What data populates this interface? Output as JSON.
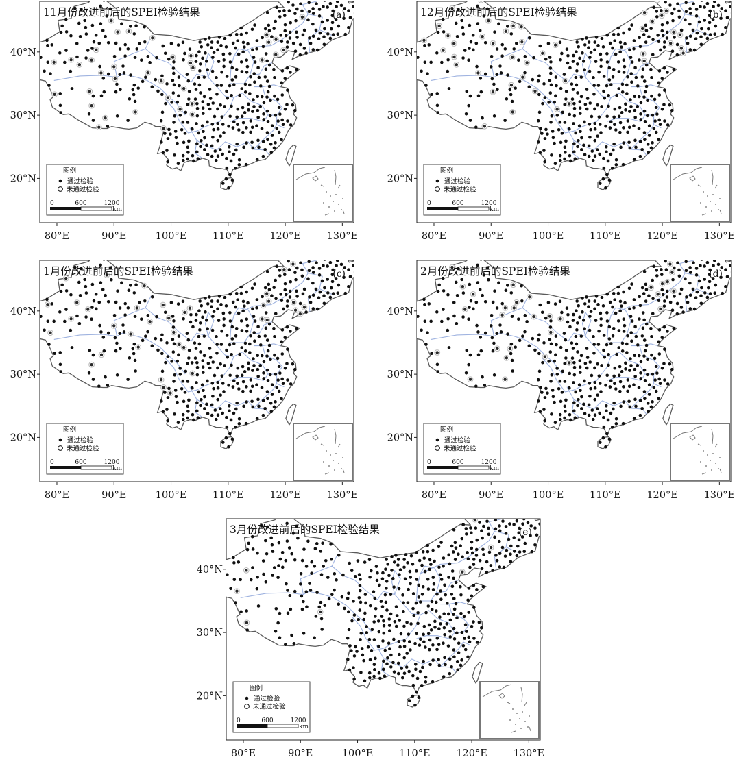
{
  "panels": [
    {
      "id": "a",
      "title": "11月份改进前后的SPEI检验结果",
      "letter": "(a)",
      "failed_stations": 38
    },
    {
      "id": "b",
      "title": "12月份改进前后的SPEI检验结果",
      "letter": "(b)",
      "failed_stations": 44
    },
    {
      "id": "c",
      "title": "1月份改进前后的SPEI检验结果",
      "letter": "(c)",
      "failed_stations": 40
    },
    {
      "id": "d",
      "title": "2月份改进前后的SPEI检验结果",
      "letter": "(d)",
      "failed_stations": 32
    },
    {
      "id": "e",
      "title": "3月份改进前后的SPEI检验结果",
      "letter": "(e)",
      "failed_stations": 10
    }
  ],
  "axes": {
    "x_ticks": [
      "80°E",
      "90°E",
      "100°E",
      "110°E",
      "120°E",
      "130°E"
    ],
    "y_ticks": [
      "40°N",
      "30°N",
      "20°N"
    ],
    "lon_range": [
      77,
      132
    ],
    "lat_range": [
      13,
      48
    ]
  },
  "legend": {
    "title": "图例",
    "pass_label": "通过检验",
    "fail_label": "未通过检验"
  },
  "scale_bar": {
    "ticks": [
      "0",
      "600",
      "1200"
    ],
    "unit": "km"
  },
  "colors": {
    "boundary": "#5a5a5a",
    "province": "#9fb3e0",
    "station": "#111111",
    "failed_ring": "#bdbdbd"
  },
  "symbols": {
    "pass": "filled-dot",
    "fail": "open-circle"
  }
}
